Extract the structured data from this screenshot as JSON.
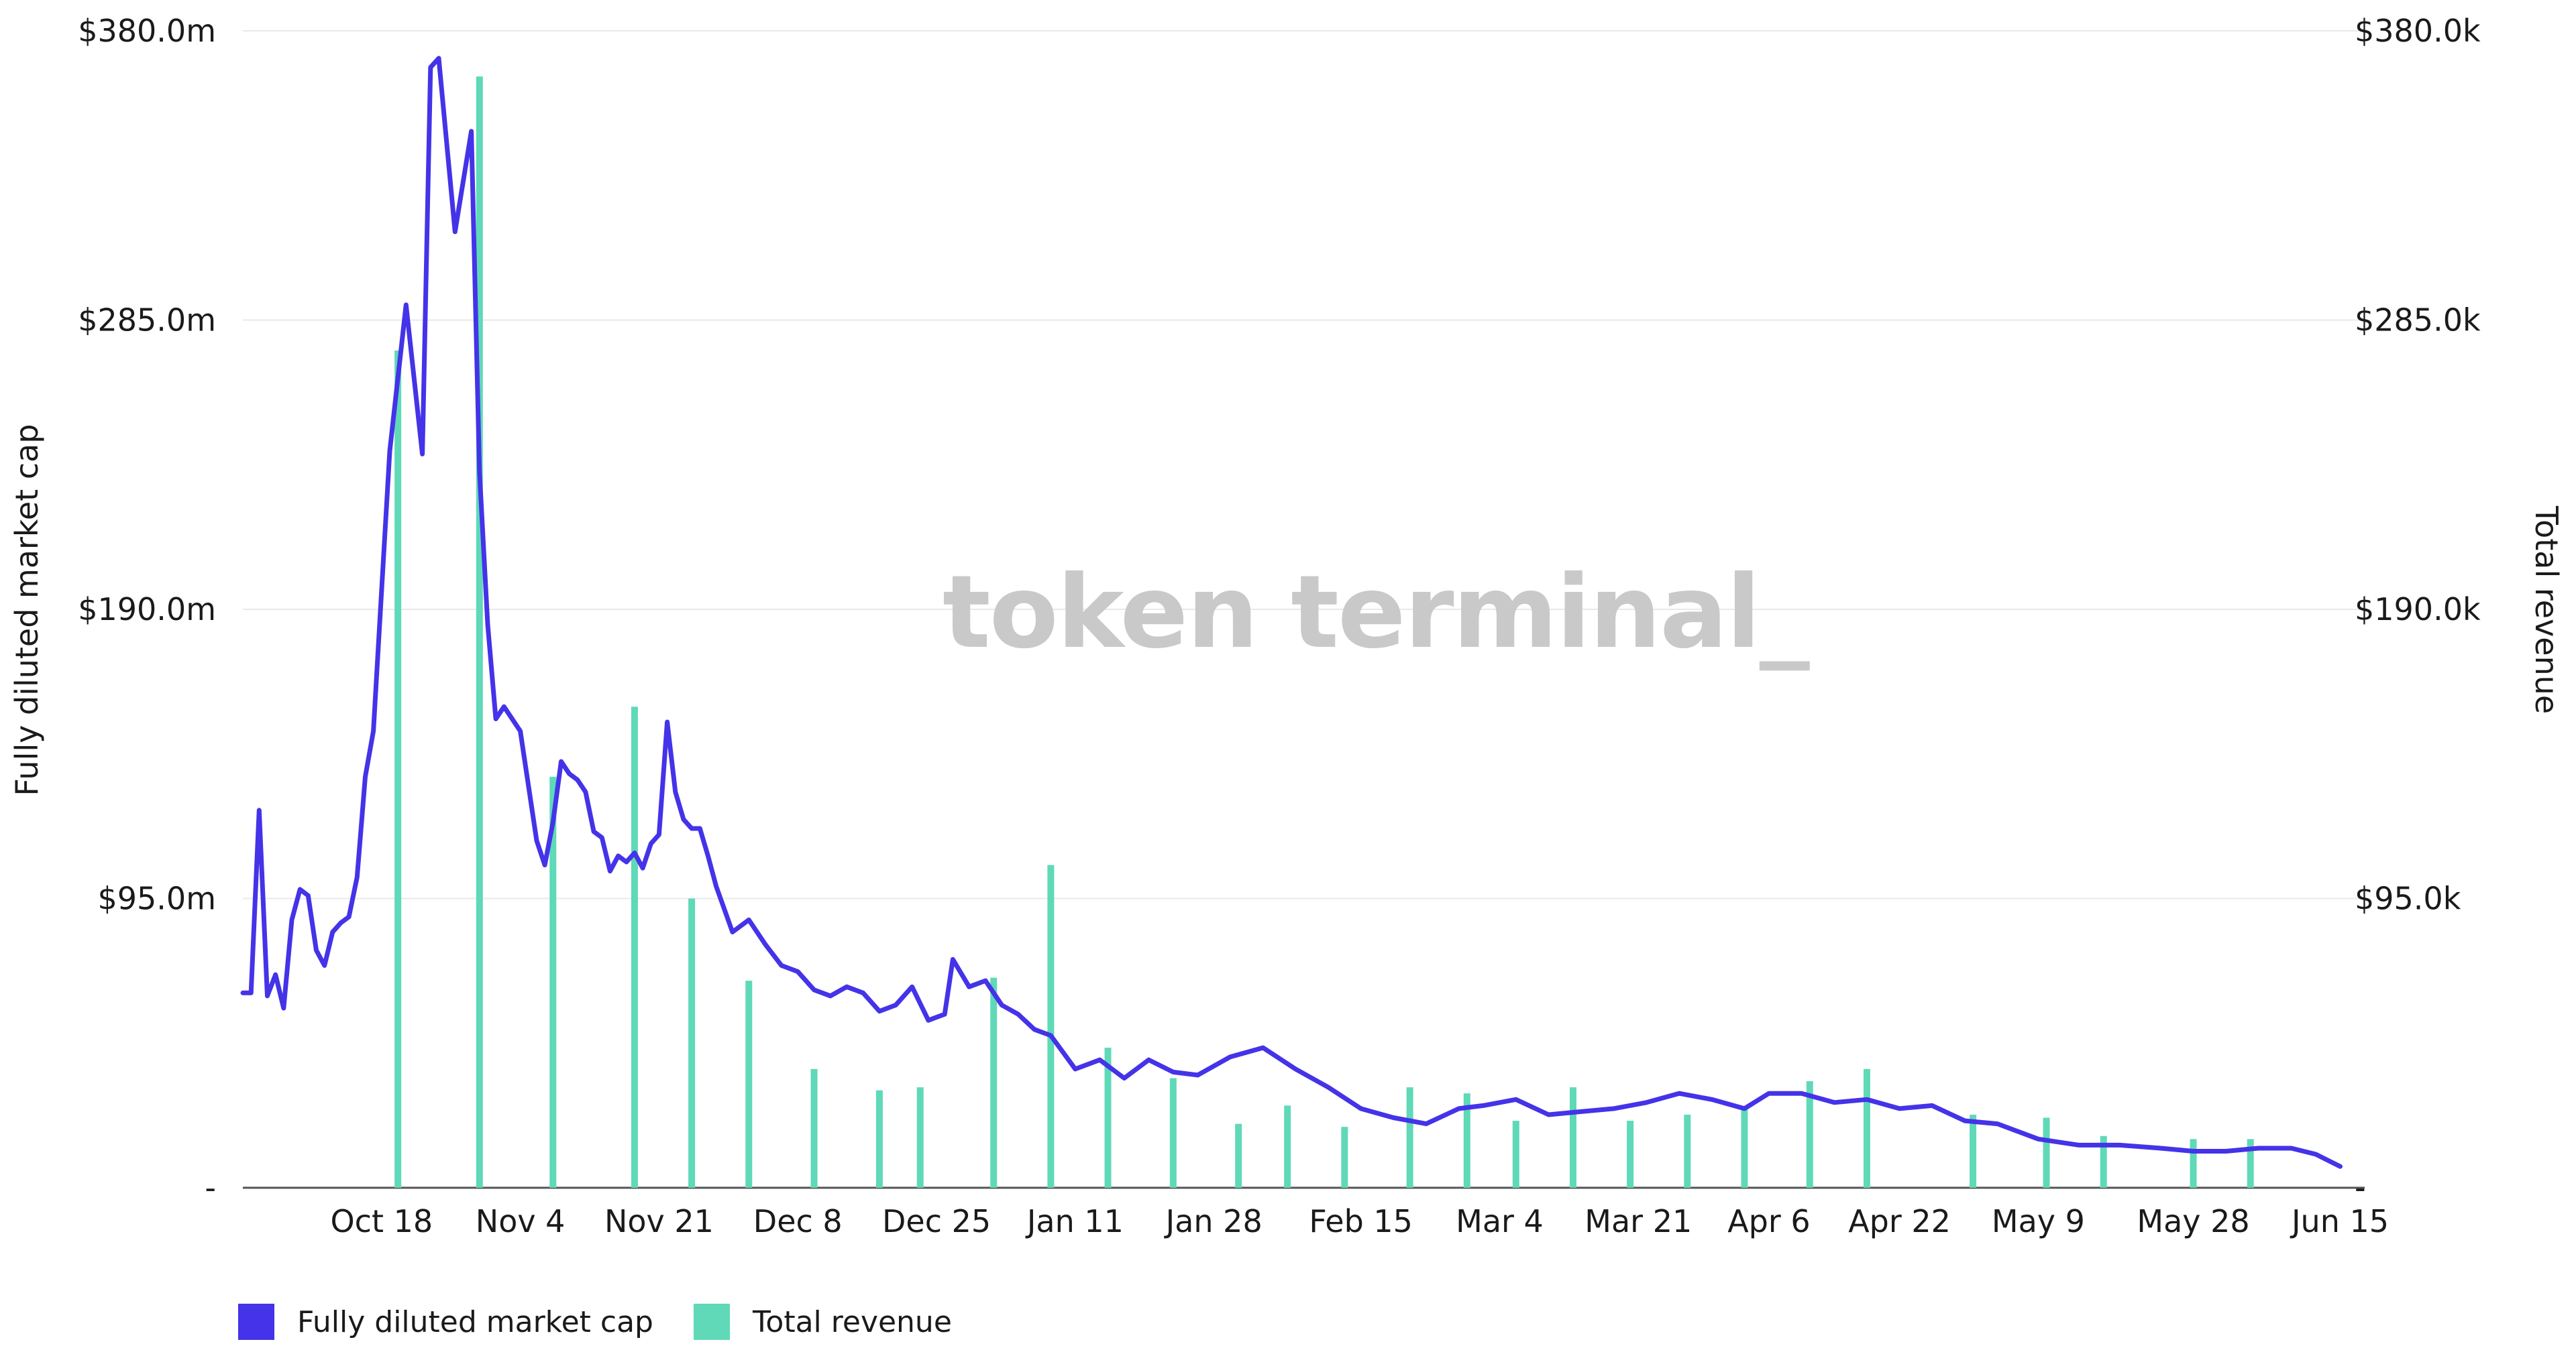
{
  "watermark": "token terminal_",
  "legend": {
    "items": [
      {
        "label": "Fully diluted market cap",
        "color": "#4433e8"
      },
      {
        "label": "Total revenue",
        "color": "#5fd9b8"
      }
    ]
  },
  "chart_data": {
    "type": "line+bar",
    "title": "",
    "x_tick_labels": [
      "Oct 18",
      "Nov 4",
      "Nov 21",
      "Dec 8",
      "Dec 25",
      "Jan 11",
      "Jan 28",
      "Feb 15",
      "Mar 4",
      "Mar 21",
      "Apr 6",
      "Apr 22",
      "May 9",
      "May 28",
      "Jun 15"
    ],
    "left_axis": {
      "label": "Fully diluted market cap",
      "ticks": [
        "-",
        "$95.0m",
        "$190.0m",
        "$285.0m",
        "$380.0m"
      ],
      "range": [
        0,
        380
      ]
    },
    "right_axis": {
      "label": "Total revenue",
      "ticks": [
        "-",
        "$95.0k",
        "$190.0k",
        "$285.0k",
        "$380.0k"
      ],
      "range": [
        0,
        380
      ]
    },
    "grid": "horizontal",
    "legend_position": "bottom-left",
    "series": [
      {
        "name": "Fully diluted market cap",
        "kind": "line",
        "axis": "left",
        "unit": "$m",
        "x": [
          "Oct 1",
          "Oct 2",
          "Oct 3",
          "Oct 4",
          "Oct 5",
          "Oct 6",
          "Oct 7",
          "Oct 8",
          "Oct 9",
          "Oct 10",
          "Oct 11",
          "Oct 12",
          "Oct 13",
          "Oct 14",
          "Oct 15",
          "Oct 16",
          "Oct 17",
          "Oct 19",
          "Oct 21",
          "Oct 23",
          "Oct 24",
          "Oct 25",
          "Oct 27",
          "Oct 29",
          "Oct 30",
          "Oct 31",
          "Nov 1",
          "Nov 2",
          "Nov 4",
          "Nov 6",
          "Nov 7",
          "Nov 8",
          "Nov 9",
          "Nov 10",
          "Nov 11",
          "Nov 12",
          "Nov 13",
          "Nov 14",
          "Nov 15",
          "Nov 16",
          "Nov 17",
          "Nov 18",
          "Nov 19",
          "Nov 20",
          "Nov 21",
          "Nov 22",
          "Nov 23",
          "Nov 24",
          "Nov 25",
          "Nov 26",
          "Nov 27",
          "Nov 28",
          "Nov 30",
          "Dec 2",
          "Dec 4",
          "Dec 6",
          "Dec 8",
          "Dec 10",
          "Dec 12",
          "Dec 14",
          "Dec 16",
          "Dec 18",
          "Dec 20",
          "Dec 22",
          "Dec 24",
          "Dec 26",
          "Dec 27",
          "Dec 29",
          "Dec 31",
          "Jan 1",
          "Jan 2",
          "Jan 4",
          "Jan 6",
          "Jan 8",
          "Jan 11",
          "Jan 14",
          "Jan 17",
          "Jan 20",
          "Jan 23",
          "Jan 26",
          "Jan 30",
          "Feb 3",
          "Feb 7",
          "Feb 11",
          "Feb 15",
          "Feb 19",
          "Feb 23",
          "Feb 27",
          "Mar 2",
          "Mar 6",
          "Mar 10",
          "Mar 14",
          "Mar 18",
          "Mar 22",
          "Mar 26",
          "Mar 30",
          "Apr 3",
          "Apr 6",
          "Apr 10",
          "Apr 14",
          "Apr 18",
          "Apr 22",
          "Apr 26",
          "Apr 30",
          "May 4",
          "May 9",
          "May 14",
          "May 19",
          "May 24",
          "May 28",
          "Jun 1",
          "Jun 5",
          "Jun 9",
          "Jun 12",
          "Jun 15"
        ],
        "values": [
          64,
          64,
          124,
          63,
          70,
          59,
          88,
          98,
          96,
          78,
          73,
          84,
          87,
          89,
          102,
          135,
          150,
          242,
          290,
          241,
          368,
          371,
          314,
          347,
          235,
          185,
          154,
          158,
          150,
          114,
          106,
          120,
          140,
          136,
          134,
          130,
          117,
          115,
          104,
          109,
          107,
          110,
          105,
          113,
          116,
          153,
          130,
          121,
          118,
          118,
          109,
          99,
          84,
          88,
          80,
          73,
          71,
          65,
          63,
          66,
          64,
          58,
          60,
          66,
          55,
          57,
          75,
          66,
          68,
          64,
          60,
          57,
          52,
          50,
          39,
          42,
          36,
          42,
          38,
          37,
          43,
          46,
          39,
          33,
          26,
          23,
          21,
          26,
          27,
          29,
          24,
          25,
          26,
          28,
          31,
          29,
          26,
          31,
          31,
          28,
          29,
          26,
          27,
          22,
          21,
          16,
          14,
          14,
          13,
          12,
          12,
          13,
          13,
          11,
          7
        ]
      },
      {
        "name": "Total revenue",
        "kind": "bar",
        "axis": "right",
        "unit": "$k",
        "x": [
          "Oct 20",
          "Oct 30",
          "Nov 8",
          "Nov 18",
          "Nov 25",
          "Dec 2",
          "Dec 10",
          "Dec 18",
          "Dec 23",
          "Jan 1",
          "Jan 8",
          "Jan 15",
          "Jan 23",
          "Jan 31",
          "Feb 6",
          "Feb 13",
          "Feb 21",
          "Feb 28",
          "Mar 6",
          "Mar 13",
          "Mar 20",
          "Mar 27",
          "Apr 3",
          "Apr 11",
          "Apr 18",
          "May 1",
          "May 10",
          "May 17",
          "May 28",
          "Jun 4"
        ],
        "values": [
          275,
          365,
          135,
          158,
          95,
          68,
          39,
          32,
          33,
          69,
          106,
          46,
          36,
          21,
          27,
          20,
          33,
          31,
          22,
          33,
          22,
          24,
          26,
          35,
          39,
          24,
          23,
          17,
          16,
          16
        ]
      }
    ]
  }
}
